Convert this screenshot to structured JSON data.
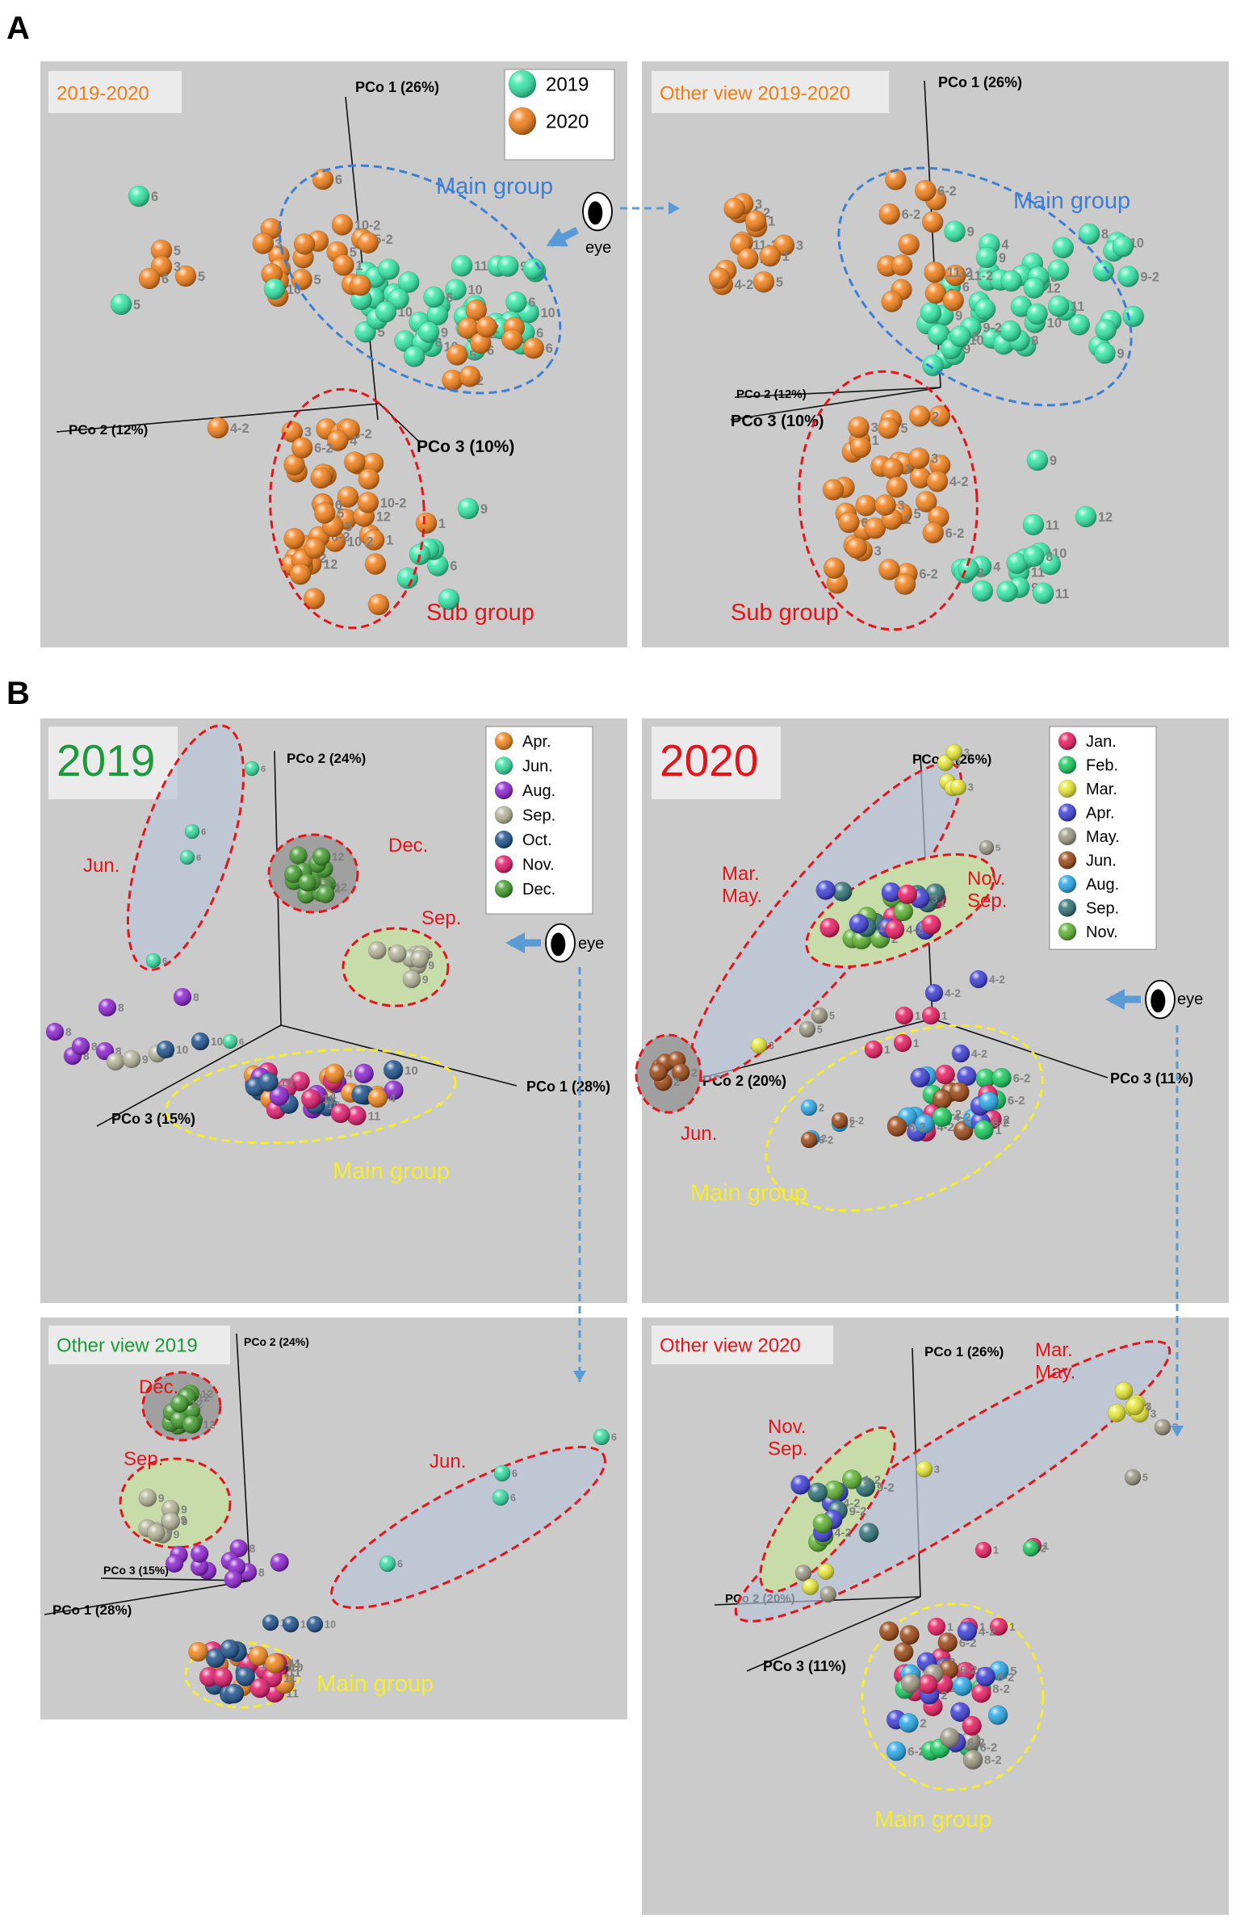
{
  "figure": {
    "panel_a_letter": "A",
    "panel_b_letter": "B",
    "eye_label": "eye"
  },
  "chart_data": [
    {
      "id": "A1",
      "type": "scatter",
      "title": "2019-2020",
      "axes": {
        "x": "PCo 2 (12%)",
        "y": "PCo 1 (26%)",
        "z": "PCo 3 (10%)"
      },
      "legend": [
        {
          "label": "2019",
          "color": "#2ee6a6"
        },
        {
          "label": "2020",
          "color": "#f27c13"
        }
      ],
      "groups": [
        {
          "label": "Main group",
          "color": "#3d7fd6"
        },
        {
          "label": "Sub group",
          "color": "#e5141a"
        }
      ],
      "point_series": [
        {
          "name": "2019",
          "color": "#2ee6a6",
          "months": [
            "6",
            "6",
            "5",
            "6",
            "10",
            "11",
            "9",
            "8",
            "4",
            "11",
            "9",
            "10",
            "11",
            "12",
            "11",
            "10",
            "9",
            "8",
            "9"
          ]
        },
        {
          "name": "2020",
          "color": "#f27c13",
          "months": [
            "6-2",
            "5",
            "3",
            "6",
            "11-2",
            "4-2",
            "5",
            "1",
            "6-2",
            "1",
            "8-2",
            "9-2",
            "5-2",
            "3",
            "2",
            "12",
            "4",
            "10-2",
            "1"
          ]
        }
      ]
    },
    {
      "id": "A2",
      "type": "scatter",
      "title": "Other view 2019-2020",
      "axes": {
        "x": "PCo 2 (12%)",
        "y": "PCo 1 (26%)",
        "z": "PCo 3 (10%)"
      },
      "groups": [
        {
          "label": "Main group",
          "color": "#3d7fd6"
        },
        {
          "label": "Sub group",
          "color": "#e5141a"
        }
      ],
      "point_series": [
        {
          "name": "2019",
          "color": "#2ee6a6",
          "months": [
            "6",
            "11",
            "10",
            "9",
            "11",
            "10",
            "11",
            "9-2",
            "4",
            "8",
            "8",
            "9",
            "8",
            "9",
            "12",
            "11",
            "10"
          ]
        },
        {
          "name": "2020",
          "color": "#f27c13",
          "months": [
            "11-2",
            "6-2",
            "5",
            "11-2",
            "4-2",
            "1",
            "3",
            "6-2",
            "5",
            "3",
            "2",
            "1",
            "4-2",
            "3"
          ]
        }
      ]
    },
    {
      "id": "B1",
      "type": "scatter",
      "title": "2019",
      "axes": {
        "x": "PCo 1 (28%)",
        "y": "PCo 2 (24%)",
        "z": "PCo 3 (15%)"
      },
      "legend": [
        {
          "label": "Apr.",
          "color": "#ef8418"
        },
        {
          "label": "Jun.",
          "color": "#33dba0"
        },
        {
          "label": "Aug.",
          "color": "#8a1fcf"
        },
        {
          "label": "Sep.",
          "color": "#b2b297"
        },
        {
          "label": "Oct.",
          "color": "#1a4f8a"
        },
        {
          "label": "Nov.",
          "color": "#e0186a"
        },
        {
          "label": "Dec.",
          "color": "#3f9a2a"
        }
      ],
      "groups": [
        {
          "label": "Jun.",
          "color": "#e5141a"
        },
        {
          "label": "Dec.",
          "color": "#e5141a"
        },
        {
          "label": "Sep.",
          "color": "#e5141a"
        },
        {
          "label": "Main group",
          "color": "#f4ec2c"
        }
      ]
    },
    {
      "id": "B2",
      "type": "scatter",
      "title": "2020",
      "axes": {
        "x": "PCo 3 (11%)",
        "y": "PCo 1 (26%)",
        "z": "PCo 2 (20%)"
      },
      "legend": [
        {
          "label": "Jan.",
          "color": "#e8185f"
        },
        {
          "label": "Feb.",
          "color": "#14c85a"
        },
        {
          "label": "Mar.",
          "color": "#e6e630"
        },
        {
          "label": "Apr.",
          "color": "#3b3bd6"
        },
        {
          "label": "May.",
          "color": "#9a9580"
        },
        {
          "label": "Jun.",
          "color": "#9a4410"
        },
        {
          "label": "Aug.",
          "color": "#24a6e6"
        },
        {
          "label": "Sep.",
          "color": "#2a6e72"
        },
        {
          "label": "Nov.",
          "color": "#5ab02e"
        }
      ],
      "groups": [
        {
          "label": "Mar.\nMay.",
          "color": "#e5141a"
        },
        {
          "label": "Nov.\nSep.",
          "color": "#e5141a"
        },
        {
          "label": "Jun.",
          "color": "#e5141a"
        },
        {
          "label": "Main group",
          "color": "#f4ec2c"
        }
      ]
    },
    {
      "id": "B3",
      "type": "scatter",
      "title": "Other view 2019",
      "axes": {
        "x": "PCo 1 (28%)",
        "y": "PCo 2 (24%)",
        "z": "PCo 3 (15%)"
      },
      "groups": [
        {
          "label": "Dec.",
          "color": "#e5141a"
        },
        {
          "label": "Sep.",
          "color": "#e5141a"
        },
        {
          "label": "Jun.",
          "color": "#e5141a"
        },
        {
          "label": "Main group",
          "color": "#f4ec2c"
        }
      ]
    },
    {
      "id": "B4",
      "type": "scatter",
      "title": "Other view 2020",
      "axes": {
        "x": "PCo 2 (20%)",
        "y": "PCo 1 (26%)",
        "z": "PCo 3 (11%)"
      },
      "groups": [
        {
          "label": "Mar.\nMay.",
          "color": "#e5141a"
        },
        {
          "label": "Nov.\nSep.",
          "color": "#e5141a"
        },
        {
          "label": "Main group",
          "color": "#f4ec2c"
        }
      ]
    }
  ]
}
